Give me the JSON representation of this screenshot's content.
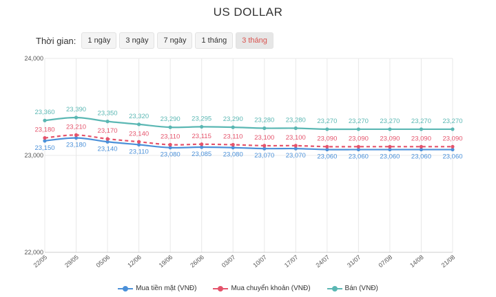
{
  "chart_data": {
    "type": "line",
    "title": "US DOLLAR",
    "x": [
      "22/05",
      "29/05",
      "05/06",
      "12/06",
      "19/06",
      "26/06",
      "03/07",
      "10/07",
      "17/07",
      "24/07",
      "31/07",
      "07/08",
      "14/08",
      "21/08"
    ],
    "ylim": [
      22000,
      24000
    ],
    "yticks": [
      "22,000",
      "23,000",
      "24,000"
    ],
    "ytick_values": [
      22000,
      23000,
      24000
    ],
    "series": [
      {
        "name": "Mua tiền mặt (VNĐ)",
        "color": "#4a90d9",
        "style": "solid",
        "values": [
          23150,
          23180,
          23140,
          23110,
          23080,
          23085,
          23080,
          23070,
          23070,
          23060,
          23060,
          23060,
          23060,
          23060
        ],
        "labels": [
          "23,150",
          "23,180",
          "23,140",
          "23,110",
          "23,080",
          "23,085",
          "23,080",
          "23,070",
          "23,070",
          "23,060",
          "23,060",
          "23,060",
          "23,060",
          "23,060"
        ]
      },
      {
        "name": "Mua chuyển khoản (VNĐ)",
        "color": "#e4536b",
        "style": "dashed",
        "values": [
          23180,
          23210,
          23170,
          23140,
          23110,
          23115,
          23110,
          23100,
          23100,
          23090,
          23090,
          23090,
          23090,
          23090
        ],
        "labels": [
          "23,180",
          "23,210",
          "23,170",
          "23,140",
          "23,110",
          "23,115",
          "23,110",
          "23,100",
          "23,100",
          "23,090",
          "23,090",
          "23,090",
          "23,090",
          "23,090"
        ]
      },
      {
        "name": "Bán (VNĐ)",
        "color": "#5ab7b3",
        "style": "solid",
        "values": [
          23360,
          23390,
          23350,
          23320,
          23290,
          23295,
          23290,
          23280,
          23280,
          23270,
          23270,
          23270,
          23270,
          23270
        ],
        "labels": [
          "23,360",
          "23,390",
          "23,350",
          "23,320",
          "23,290",
          "23,295",
          "23,290",
          "23,280",
          "23,280",
          "23,270",
          "23,270",
          "23,270",
          "23,270",
          "23,270"
        ]
      }
    ],
    "grid": true,
    "legend": "bottom"
  },
  "range": {
    "label": "Thời gian:",
    "options": [
      "1 ngày",
      "3 ngày",
      "7 ngày",
      "1 tháng",
      "3 tháng"
    ],
    "selected": "3 tháng"
  }
}
